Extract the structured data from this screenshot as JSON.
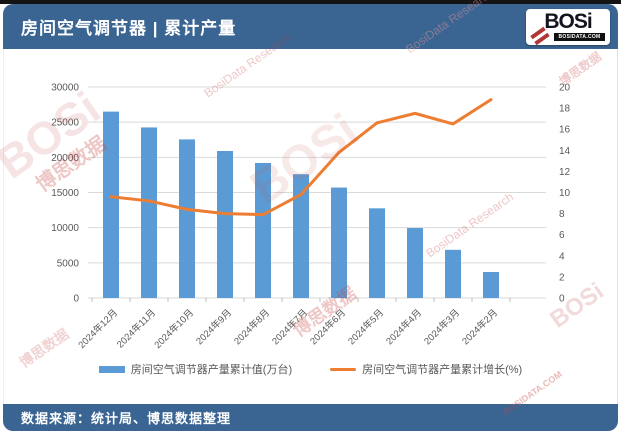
{
  "header": {
    "title": "房间空气调节器 | 累计产量",
    "logo": {
      "brand": "BOSi",
      "domain": "BOSIDATA.COM"
    }
  },
  "legend": {
    "bar_label": "房间空气调节器产量累计值(万台)",
    "line_label": "房间空气调节器产量累计增长(%)"
  },
  "footer": {
    "source_text": "数据来源：统计局、博思数据整理"
  },
  "watermark": {
    "brand": "BOSi",
    "cn": "博思数据",
    "en": "BosiData Research",
    "domain": "BOSIDATA.COM"
  },
  "colors": {
    "header_blue": "#3a6492",
    "bar_blue": "#5B9BD5",
    "line_orange": "#ED7D31",
    "gridline": "#D9D9D9",
    "axis_text": "#595959",
    "logo_red": "#b23737"
  },
  "chart_data": {
    "type": "bar",
    "subtype": "combo-bar-line",
    "title": "房间空气调节器 | 累计产量",
    "categories": [
      "2024年12月",
      "2024年11月",
      "2024年10月",
      "2024年9月",
      "2024年8月",
      "2024年7月",
      "2024年6月",
      "2024年5月",
      "2024年4月",
      "2024年3月",
      "2024年2月"
    ],
    "series": [
      {
        "name": "房间空气调节器产量累计值(万台)",
        "type": "bar",
        "axis": "left",
        "values": [
          26500,
          24250,
          22550,
          20900,
          19200,
          17600,
          15700,
          12750,
          9950,
          6850,
          3700
        ]
      },
      {
        "name": "房间空气调节器产量累计增长(%)",
        "type": "line",
        "axis": "right",
        "values": [
          9.6,
          9.2,
          8.4,
          8.0,
          7.9,
          9.8,
          13.8,
          16.6,
          17.5,
          16.5,
          18.8
        ]
      }
    ],
    "left_axis": {
      "min": 0,
      "max": 30000,
      "step": 5000
    },
    "right_axis": {
      "min": 0,
      "max": 20,
      "step": 2
    },
    "grid": true,
    "legend_position": "bottom",
    "x_label_rotation": -45
  }
}
